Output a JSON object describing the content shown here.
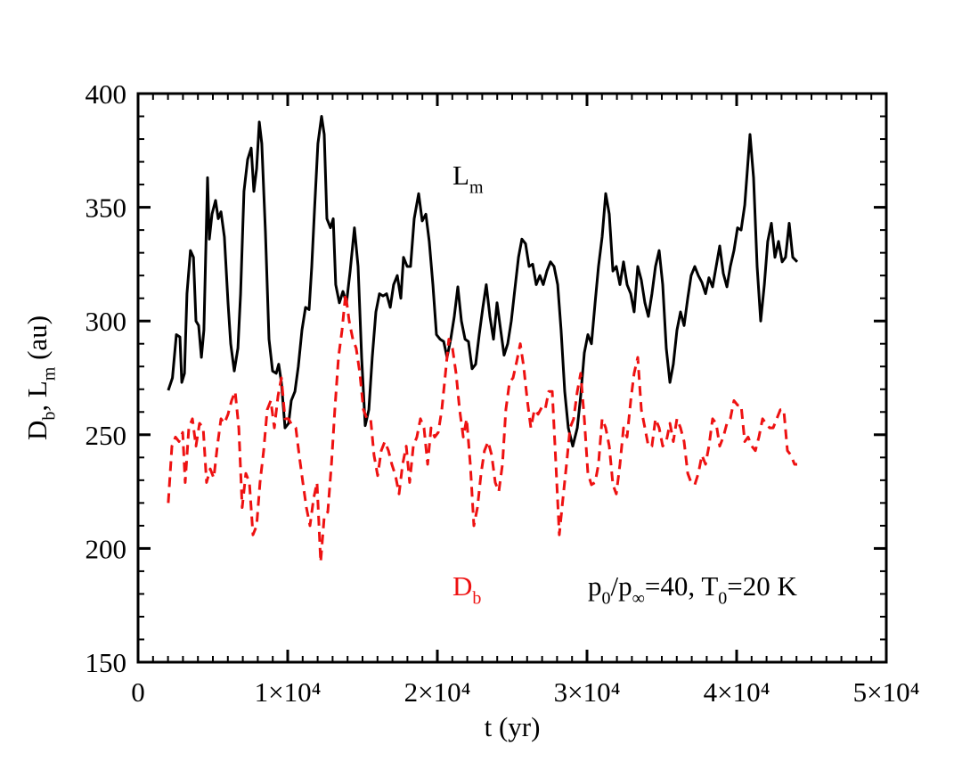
{
  "chart_data": {
    "type": "line",
    "xlabel": "t (yr)",
    "ylabel": [
      {
        "text": "D"
      },
      {
        "text": "b",
        "sub": true
      },
      {
        "text": ", L"
      },
      {
        "text": "m",
        "sub": true
      },
      {
        "text": " (au)"
      }
    ],
    "xlim": [
      0,
      50000
    ],
    "ylim": [
      150,
      400
    ],
    "xticks": [
      0,
      {
        "value": 10000,
        "label": "1×10⁴"
      },
      {
        "value": 20000,
        "label": "2×10⁴"
      },
      {
        "value": 30000,
        "label": "3×10⁴"
      },
      {
        "value": 40000,
        "label": "4×10⁴"
      },
      {
        "value": 50000,
        "label": "5×10⁴"
      }
    ],
    "yticks": [
      150,
      200,
      250,
      300,
      350,
      400
    ],
    "xminor_step": 1000,
    "yminor_step": 10,
    "annotations": [
      {
        "color": "#000000",
        "parts": [
          {
            "text": "L"
          },
          {
            "text": "m",
            "sub": true
          }
        ]
      },
      {
        "color": "#ee1111",
        "parts": [
          {
            "text": "D"
          },
          {
            "text": "b",
            "sub": true
          }
        ]
      },
      {
        "color": "#000000",
        "parts": [
          {
            "text": "p"
          },
          {
            "text": "0",
            "sub": true
          },
          {
            "text": "/p"
          },
          {
            "text": "∞",
            "sub": true
          },
          {
            "text": "=40, T"
          },
          {
            "text": "0",
            "sub": true
          },
          {
            "text": "=20 K"
          }
        ]
      }
    ],
    "series": [
      {
        "name": "L_m",
        "color": "#000000",
        "dash": false,
        "x": [
          2020,
          2300,
          2560,
          2800,
          2920,
          3100,
          3270,
          3500,
          3700,
          3870,
          4050,
          4230,
          4400,
          4640,
          4760,
          4940,
          5180,
          5360,
          5540,
          5770,
          6010,
          6190,
          6430,
          6670,
          6850,
          7080,
          7320,
          7560,
          7740,
          7920,
          8100,
          8270,
          8510,
          8750,
          8990,
          9230,
          9400,
          9580,
          9820,
          10060,
          10240,
          10480,
          10710,
          10950,
          11190,
          11430,
          11610,
          11790,
          12020,
          12260,
          12440,
          12620,
          12860,
          13040,
          13210,
          13450,
          13690,
          13930,
          14170,
          14460,
          14700,
          14940,
          15180,
          15420,
          15650,
          15890,
          16130,
          16370,
          16610,
          16850,
          17080,
          17320,
          17560,
          17740,
          17980,
          18210,
          18450,
          18750,
          18990,
          19230,
          19460,
          19700,
          19940,
          20180,
          20420,
          20650,
          20890,
          21130,
          21370,
          21610,
          21850,
          22080,
          22320,
          22560,
          22800,
          23040,
          23270,
          23510,
          23750,
          23990,
          24230,
          24460,
          24700,
          24940,
          25180,
          25420,
          25650,
          25890,
          26130,
          26370,
          26610,
          26850,
          27080,
          27320,
          27560,
          27800,
          28040,
          28270,
          28510,
          28750,
          29050,
          29350,
          29580,
          29820,
          30060,
          30300,
          30540,
          30770,
          31010,
          31250,
          31490,
          31730,
          31960,
          32200,
          32440,
          32680,
          32920,
          33150,
          33390,
          33630,
          33870,
          34100,
          34340,
          34580,
          34820,
          35060,
          35300,
          35540,
          35770,
          36010,
          36250,
          36490,
          36730,
          36960,
          37200,
          37440,
          37680,
          37920,
          38150,
          38390,
          38630,
          38870,
          39110,
          39350,
          39580,
          39820,
          40060,
          40300,
          40540,
          40890,
          41130,
          41370,
          41610,
          41850,
          42080,
          42320,
          42560,
          42800,
          43040,
          43270,
          43510,
          43750,
          44050
        ],
        "values": [
          269.5,
          275,
          294,
          293,
          273,
          277,
          312,
          331,
          328,
          300,
          298,
          284,
          296,
          363,
          336,
          347,
          353,
          345,
          348,
          337,
          308,
          290,
          278,
          288,
          312,
          357,
          371,
          376,
          357,
          367,
          387.5,
          378,
          339,
          292,
          278,
          277,
          281,
          273,
          253,
          255,
          265,
          269,
          280,
          296,
          306,
          305,
          324,
          349,
          378,
          390,
          382,
          345,
          341,
          345,
          316,
          308,
          313,
          308,
          322,
          341,
          324,
          284,
          254,
          261,
          284,
          304,
          312,
          311,
          312,
          306,
          316,
          320,
          310,
          328,
          324,
          324,
          345,
          356,
          344,
          347,
          335,
          316,
          294,
          292,
          291,
          284,
          292,
          302,
          315,
          300,
          292,
          291,
          279,
          281,
          294,
          306,
          316,
          302,
          292,
          308,
          296,
          285,
          290,
          300,
          314,
          328,
          336,
          334,
          324,
          325,
          316,
          320,
          316,
          322,
          326,
          324,
          316,
          296,
          269,
          253,
          245,
          253,
          267,
          286,
          294,
          290,
          308,
          324,
          337,
          356,
          347,
          322,
          324,
          316,
          326,
          316,
          312,
          304,
          324,
          318,
          308,
          302,
          312,
          324,
          331,
          316,
          288,
          273,
          281,
          296,
          304,
          298,
          310,
          320,
          324,
          320,
          317,
          312,
          319,
          315,
          324,
          333,
          321,
          315,
          324,
          331,
          341,
          340,
          351,
          382,
          363,
          324,
          300,
          316,
          335,
          343,
          328,
          335,
          326,
          328,
          343,
          328,
          326
        ]
      },
      {
        "name": "D_b",
        "color": "#ee1111",
        "dash": true,
        "x": [
          2020,
          2260,
          2500,
          2740,
          2980,
          3150,
          3390,
          3630,
          3870,
          4110,
          4350,
          4580,
          4820,
          5060,
          5300,
          5540,
          5770,
          6010,
          6250,
          6490,
          6730,
          6960,
          7200,
          7440,
          7680,
          7920,
          8150,
          8390,
          8630,
          8870,
          9110,
          9350,
          9580,
          9820,
          10060,
          10300,
          10540,
          10770,
          11010,
          11250,
          11490,
          11730,
          11960,
          12200,
          12440,
          12680,
          12920,
          13150,
          13390,
          13630,
          13870,
          14110,
          14350,
          14580,
          14820,
          15060,
          15300,
          15540,
          15770,
          16010,
          16250,
          16490,
          16730,
          16960,
          17200,
          17440,
          17680,
          17920,
          18150,
          18390,
          18630,
          18870,
          19110,
          19350,
          19580,
          19820,
          20060,
          20300,
          20540,
          20770,
          21010,
          21250,
          21490,
          21730,
          21960,
          22200,
          22440,
          22680,
          22920,
          23150,
          23390,
          23630,
          23870,
          24110,
          24350,
          24580,
          24820,
          25060,
          25300,
          25540,
          25770,
          26010,
          26250,
          26490,
          26730,
          26970,
          27200,
          27440,
          27680,
          27920,
          28150,
          28390,
          28630,
          28870,
          29110,
          29350,
          29580,
          29820,
          30060,
          30300,
          30540,
          30770,
          31010,
          31250,
          31490,
          31730,
          31960,
          32200,
          32440,
          32680,
          32920,
          33150,
          33390,
          33630,
          33870,
          34100,
          34340,
          34580,
          34820,
          35060,
          35300,
          35540,
          35770,
          36010,
          36250,
          36490,
          36730,
          36960,
          37200,
          37440,
          37680,
          37920,
          38150,
          38390,
          38630,
          38870,
          39110,
          39350,
          39580,
          39820,
          40060,
          40300,
          40540,
          40770,
          41010,
          41250,
          41490,
          41730,
          41960,
          42200,
          42440,
          42680,
          42920,
          43150,
          43390,
          43630,
          43870,
          44050
        ],
        "values": [
          220,
          245,
          249,
          247,
          251,
          229,
          253,
          257,
          245,
          255,
          253,
          229,
          235,
          231,
          245,
          257,
          255,
          259,
          265,
          269,
          253,
          218,
          233,
          229,
          206,
          210,
          229,
          243,
          261,
          265,
          253,
          267,
          275,
          257,
          257,
          254,
          253,
          241,
          229,
          218,
          210,
          222,
          229,
          194,
          214,
          216,
          237,
          261,
          284,
          296,
          312,
          300,
          292,
          288,
          277,
          261,
          257,
          257,
          241,
          232,
          243,
          247,
          243,
          237,
          232,
          224,
          237,
          245,
          229,
          245,
          249,
          257,
          253,
          237,
          253,
          249,
          251,
          261,
          277,
          292,
          288,
          277,
          261,
          249,
          257,
          237,
          210,
          218,
          233,
          243,
          247,
          241,
          229,
          225,
          237,
          261,
          273,
          275,
          282,
          290,
          280,
          265,
          253,
          261,
          259,
          262,
          261,
          269,
          269,
          237,
          206,
          222,
          237,
          253,
          257,
          269,
          277,
          257,
          233,
          228,
          229,
          237,
          257,
          253,
          245,
          228,
          224,
          237,
          253,
          249,
          265,
          277,
          284,
          261,
          253,
          245,
          245,
          257,
          253,
          245,
          247,
          255,
          247,
          257,
          253,
          247,
          233,
          229,
          228,
          233,
          241,
          237,
          245,
          257,
          255,
          245,
          249,
          255,
          257,
          265,
          263,
          263,
          247,
          249,
          245,
          243,
          249,
          257,
          255,
          253,
          253,
          257,
          261,
          261,
          243,
          241,
          237,
          237
        ]
      }
    ]
  }
}
